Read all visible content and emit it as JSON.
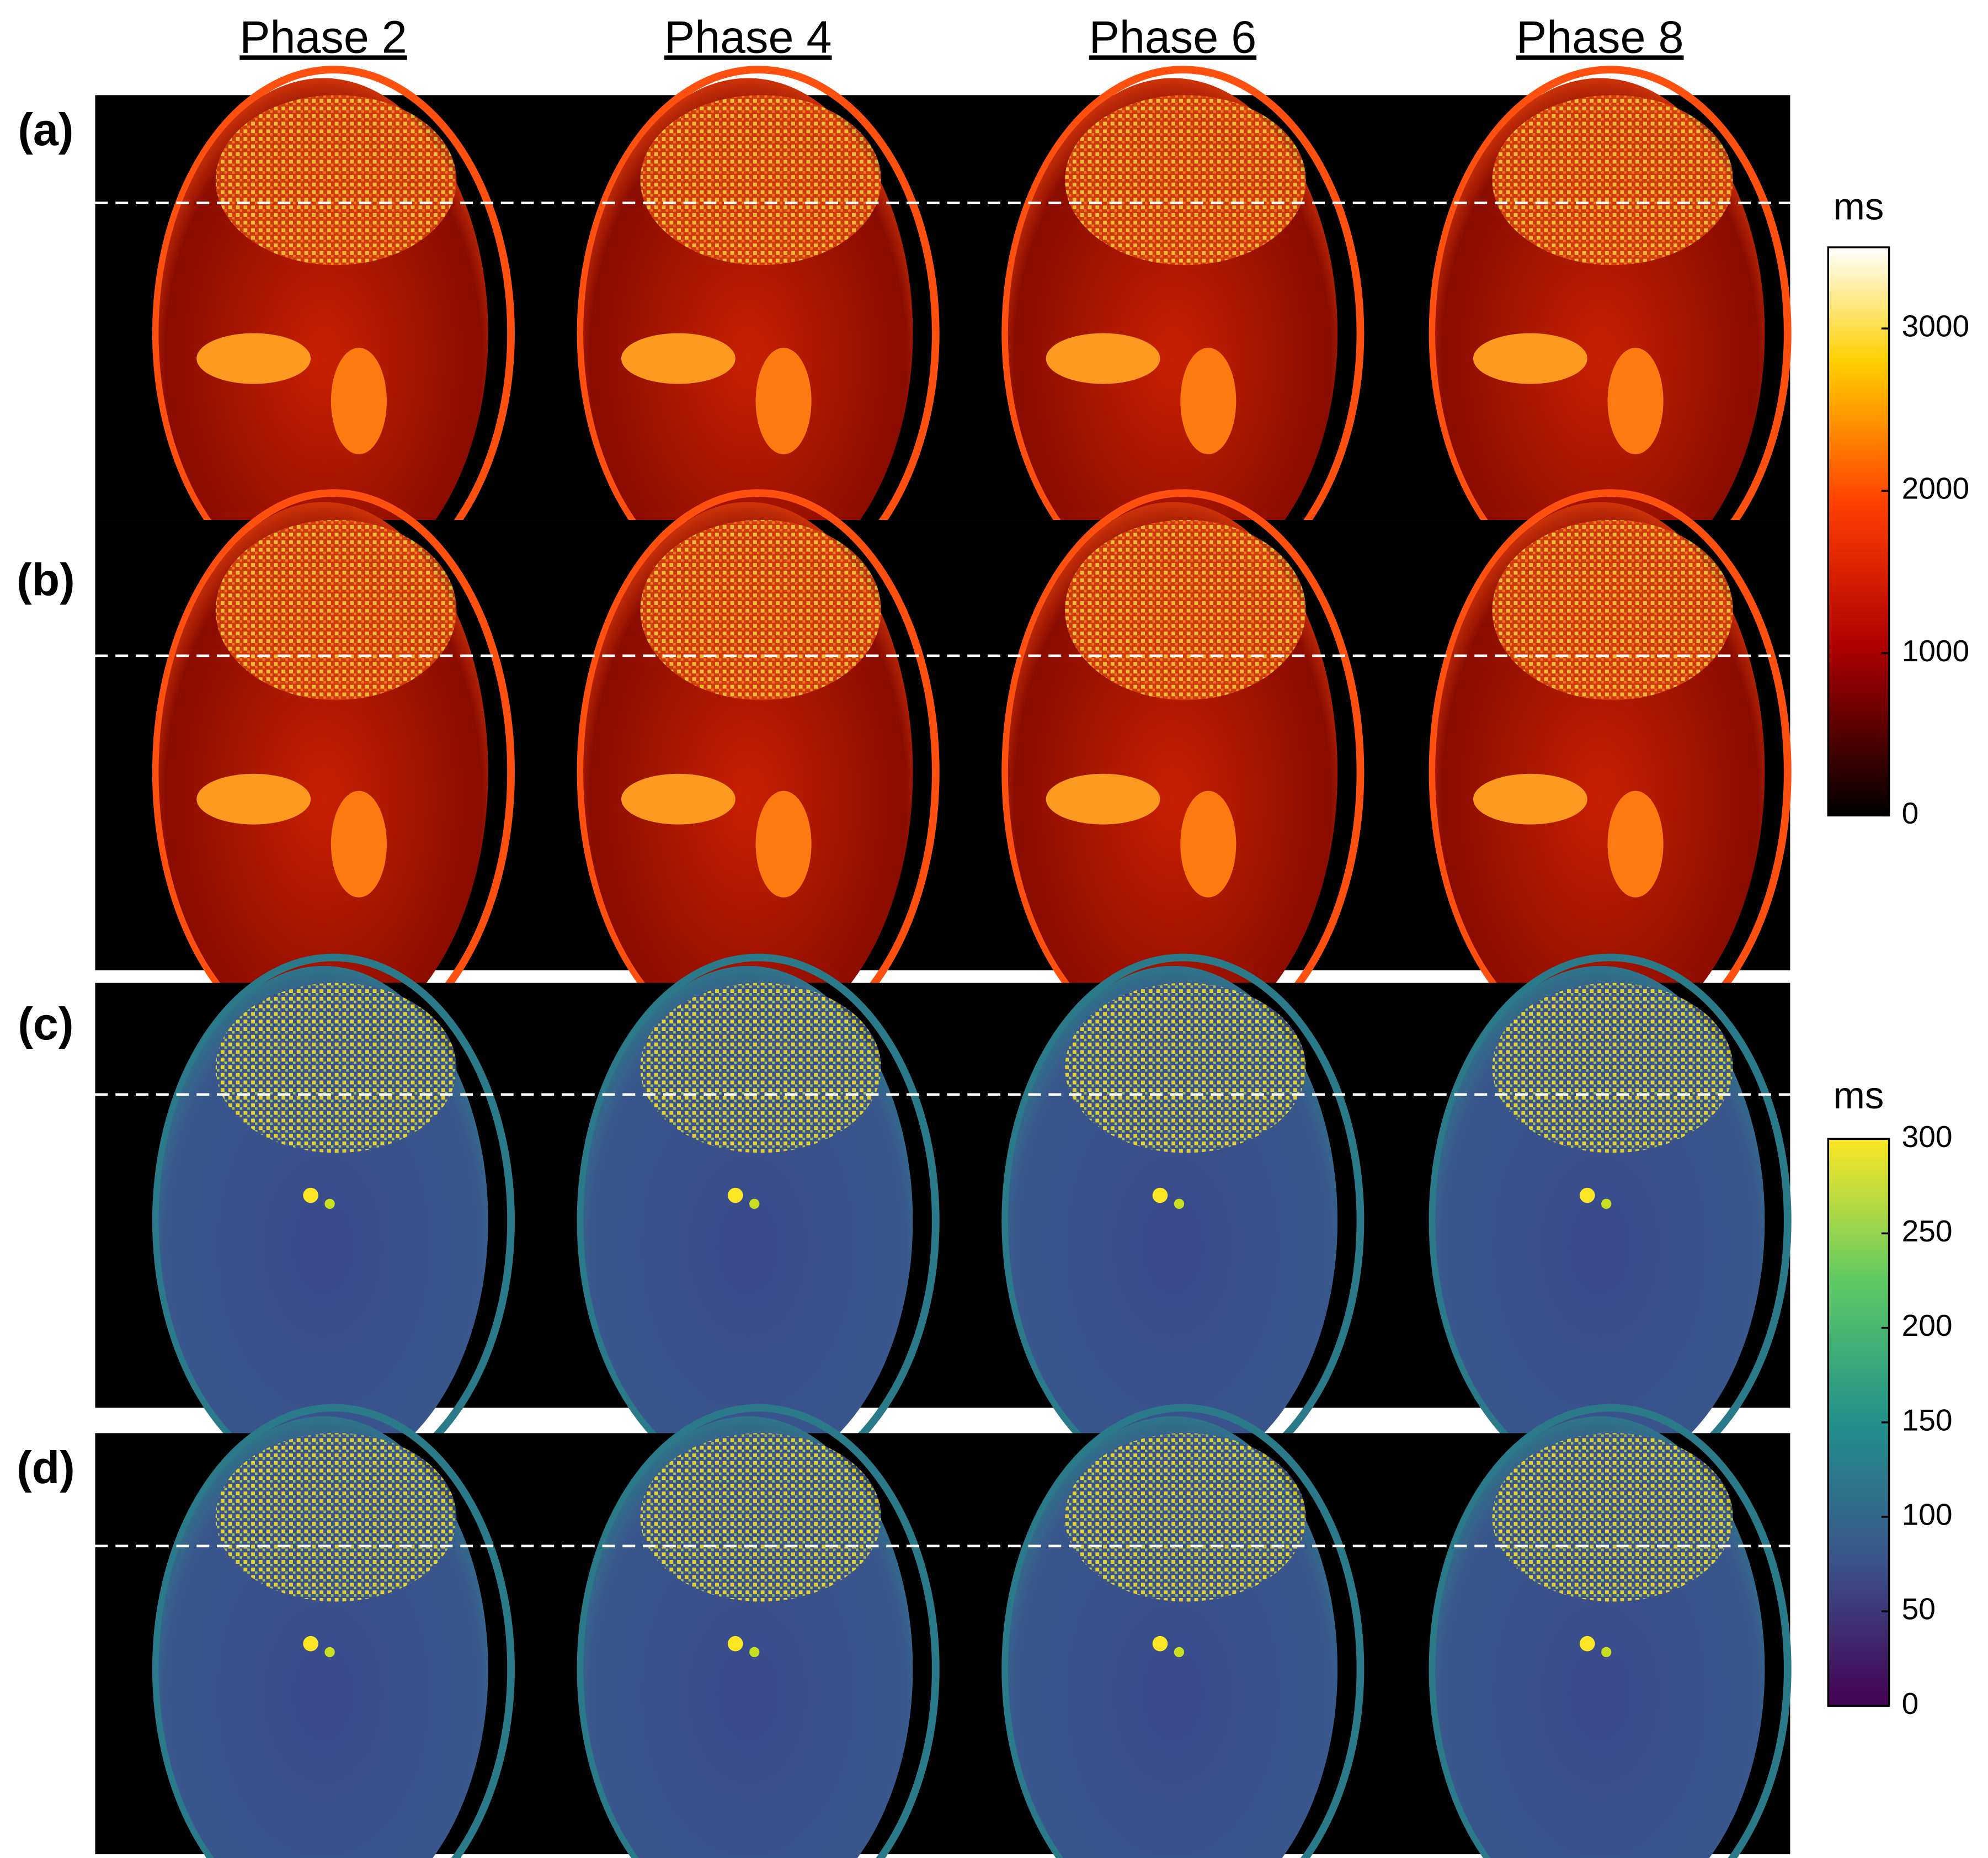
{
  "columns": [
    "Phase 2",
    "Phase 4",
    "Phase 6",
    "Phase 8"
  ],
  "rows": [
    "(a)",
    "(b)",
    "(c)",
    "(d)"
  ],
  "colorbars": [
    {
      "unit": "ms",
      "lim": [
        0,
        3500
      ],
      "ticks": [
        0,
        1000,
        2000,
        3000
      ]
    },
    {
      "unit": "ms",
      "lim": [
        0,
        300
      ],
      "ticks": [
        0,
        50,
        100,
        150,
        200,
        250,
        300
      ]
    }
  ]
}
